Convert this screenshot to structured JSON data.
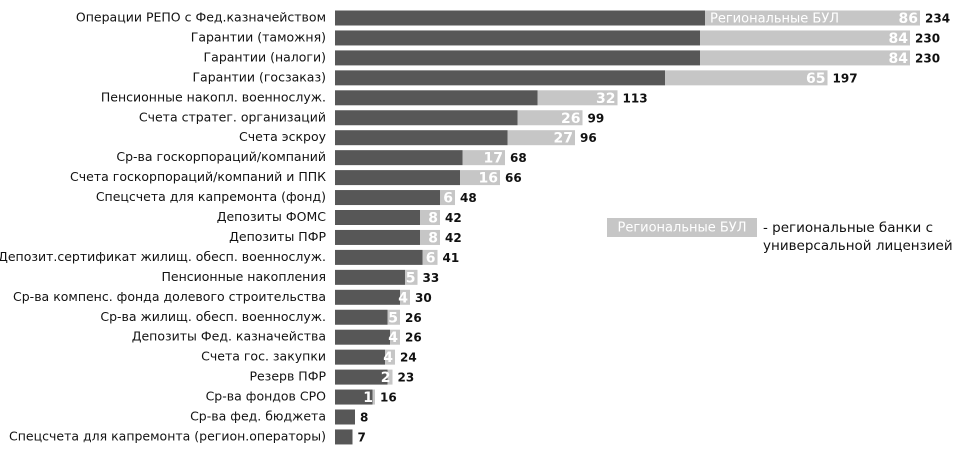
{
  "chart_data": {
    "type": "stacked_barh",
    "categories": [
      "Операции РЕПО с Фед.казначейством",
      "Гарантии (таможня)",
      "Гарантии (налоги)",
      "Гарантии (госзаказ)",
      "Пенсионные накопл. военнослуж.",
      "Счета стратег. организаций",
      "Счета эскроу",
      "Ср-ва госкорпораций/компаний",
      "Счета госкорпораций/компаний и ППК",
      "Спецсчета для капремонта (фонд)",
      "Депозиты ФОМС",
      "Депозиты ПФР",
      "Депозит.сертификат жилищ. обесп. военнослуж.",
      "Пенсионные накопления",
      "Ср-ва компенс. фонда долевого строительства",
      "Ср-ва жилищ. обесп. военнослуж.",
      "Депозиты Фед. казначейства",
      "Счета гос. закупки",
      "Резерв ПФР",
      "Ср-ва фондов СРО",
      "Ср-ва фед. бюджета",
      "Спецсчета для капремонта (регион.операторы)"
    ],
    "series": [
      {
        "color": "#575757",
        "values": [
          148,
          146,
          146,
          132,
          81,
          73,
          69,
          51,
          50,
          42,
          34,
          34,
          35,
          28,
          26,
          21,
          22,
          20,
          21,
          15,
          8,
          7
        ]
      },
      {
        "name": "Региональные БУЛ",
        "color": "#c6c6c6",
        "values": [
          86,
          84,
          84,
          65,
          32,
          26,
          27,
          17,
          16,
          6,
          8,
          8,
          6,
          5,
          4,
          5,
          4,
          4,
          2,
          1,
          null,
          null
        ]
      }
    ],
    "totals": [
      234,
      230,
      230,
      197,
      113,
      99,
      96,
      68,
      66,
      48,
      42,
      42,
      41,
      33,
      30,
      26,
      26,
      24,
      23,
      16,
      8,
      7
    ],
    "legend_note": [
      "- региональные банки с",
      "универсальной лицензией"
    ]
  }
}
